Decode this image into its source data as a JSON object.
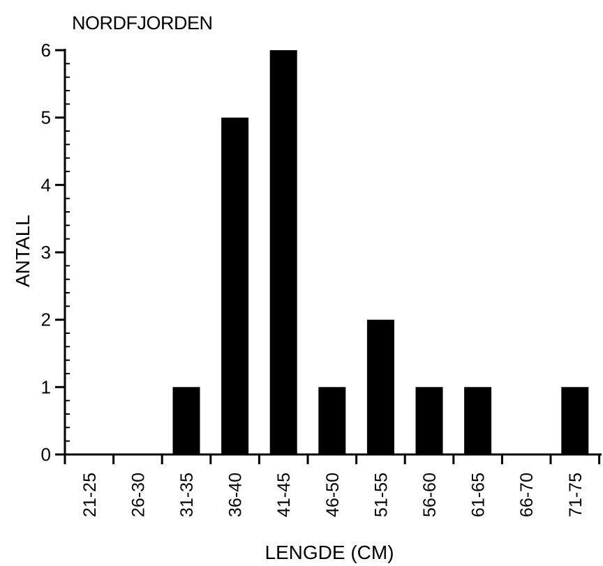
{
  "chart_data": {
    "type": "bar",
    "title": "NORDFJORDEN",
    "xlabel": "LENGDE (CM)",
    "ylabel": "ANTALL",
    "categories": [
      "21-25",
      "26-30",
      "31-35",
      "36-40",
      "41-45",
      "46-50",
      "51-55",
      "56-60",
      "61-65",
      "66-70",
      "71-75"
    ],
    "values": [
      0,
      0,
      1,
      5,
      6,
      1,
      2,
      1,
      1,
      0,
      1
    ],
    "ylim": [
      0,
      6
    ],
    "yticks": [
      "0",
      "1",
      "2",
      "3",
      "4",
      "5",
      "6"
    ],
    "grid": false,
    "bar_color": "#000000"
  }
}
